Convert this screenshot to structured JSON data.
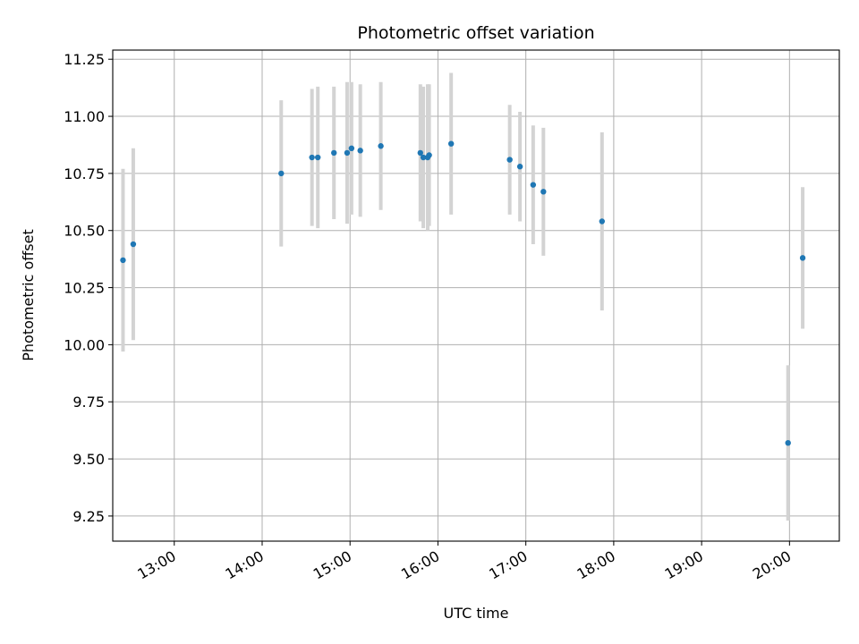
{
  "chart_data": {
    "type": "scatter",
    "title": "Photometric offset variation",
    "xlabel": "UTC time",
    "ylabel": "Photometric offset",
    "xlim": [
      "12:18",
      "20:34"
    ],
    "ylim": [
      9.14,
      11.29
    ],
    "x_ticks": [
      "13:00",
      "14:00",
      "15:00",
      "16:00",
      "17:00",
      "18:00",
      "19:00",
      "20:00"
    ],
    "y_ticks": [
      9.25,
      9.5,
      9.75,
      10.0,
      10.25,
      10.5,
      10.75,
      11.0,
      11.25
    ],
    "y_tick_labels": [
      "9.25",
      "9.50",
      "9.75",
      "10.00",
      "10.25",
      "10.50",
      "10.75",
      "11.00",
      "11.25"
    ],
    "grid": true,
    "colors": {
      "points": "#1f77b4",
      "error_bars": "#d3d3d3",
      "grid": "#b0b0b0"
    },
    "series": [
      {
        "points": [
          {
            "x": "12:25",
            "y": 10.37,
            "err": 0.4
          },
          {
            "x": "12:32",
            "y": 10.44,
            "err": 0.42
          },
          {
            "x": "14:13",
            "y": 10.75,
            "err": 0.32
          },
          {
            "x": "14:34",
            "y": 10.82,
            "err": 0.3
          },
          {
            "x": "14:38",
            "y": 10.82,
            "err": 0.31
          },
          {
            "x": "14:49",
            "y": 10.84,
            "err": 0.29
          },
          {
            "x": "14:58",
            "y": 10.84,
            "err": 0.31
          },
          {
            "x": "15:01",
            "y": 10.86,
            "err": 0.29
          },
          {
            "x": "15:07",
            "y": 10.85,
            "err": 0.29
          },
          {
            "x": "15:21",
            "y": 10.87,
            "err": 0.28
          },
          {
            "x": "15:48",
            "y": 10.84,
            "err": 0.3
          },
          {
            "x": "15:50",
            "y": 10.82,
            "err": 0.31
          },
          {
            "x": "15:53",
            "y": 10.82,
            "err": 0.32
          },
          {
            "x": "15:54",
            "y": 10.83,
            "err": 0.31
          },
          {
            "x": "16:09",
            "y": 10.88,
            "err": 0.31
          },
          {
            "x": "16:49",
            "y": 10.81,
            "err": 0.24
          },
          {
            "x": "16:56",
            "y": 10.78,
            "err": 0.24
          },
          {
            "x": "17:05",
            "y": 10.7,
            "err": 0.26
          },
          {
            "x": "17:12",
            "y": 10.67,
            "err": 0.28
          },
          {
            "x": "17:52",
            "y": 10.54,
            "err": 0.39
          },
          {
            "x": "19:59",
            "y": 9.57,
            "err": 0.34
          },
          {
            "x": "20:09",
            "y": 10.38,
            "err": 0.31
          }
        ]
      }
    ]
  }
}
